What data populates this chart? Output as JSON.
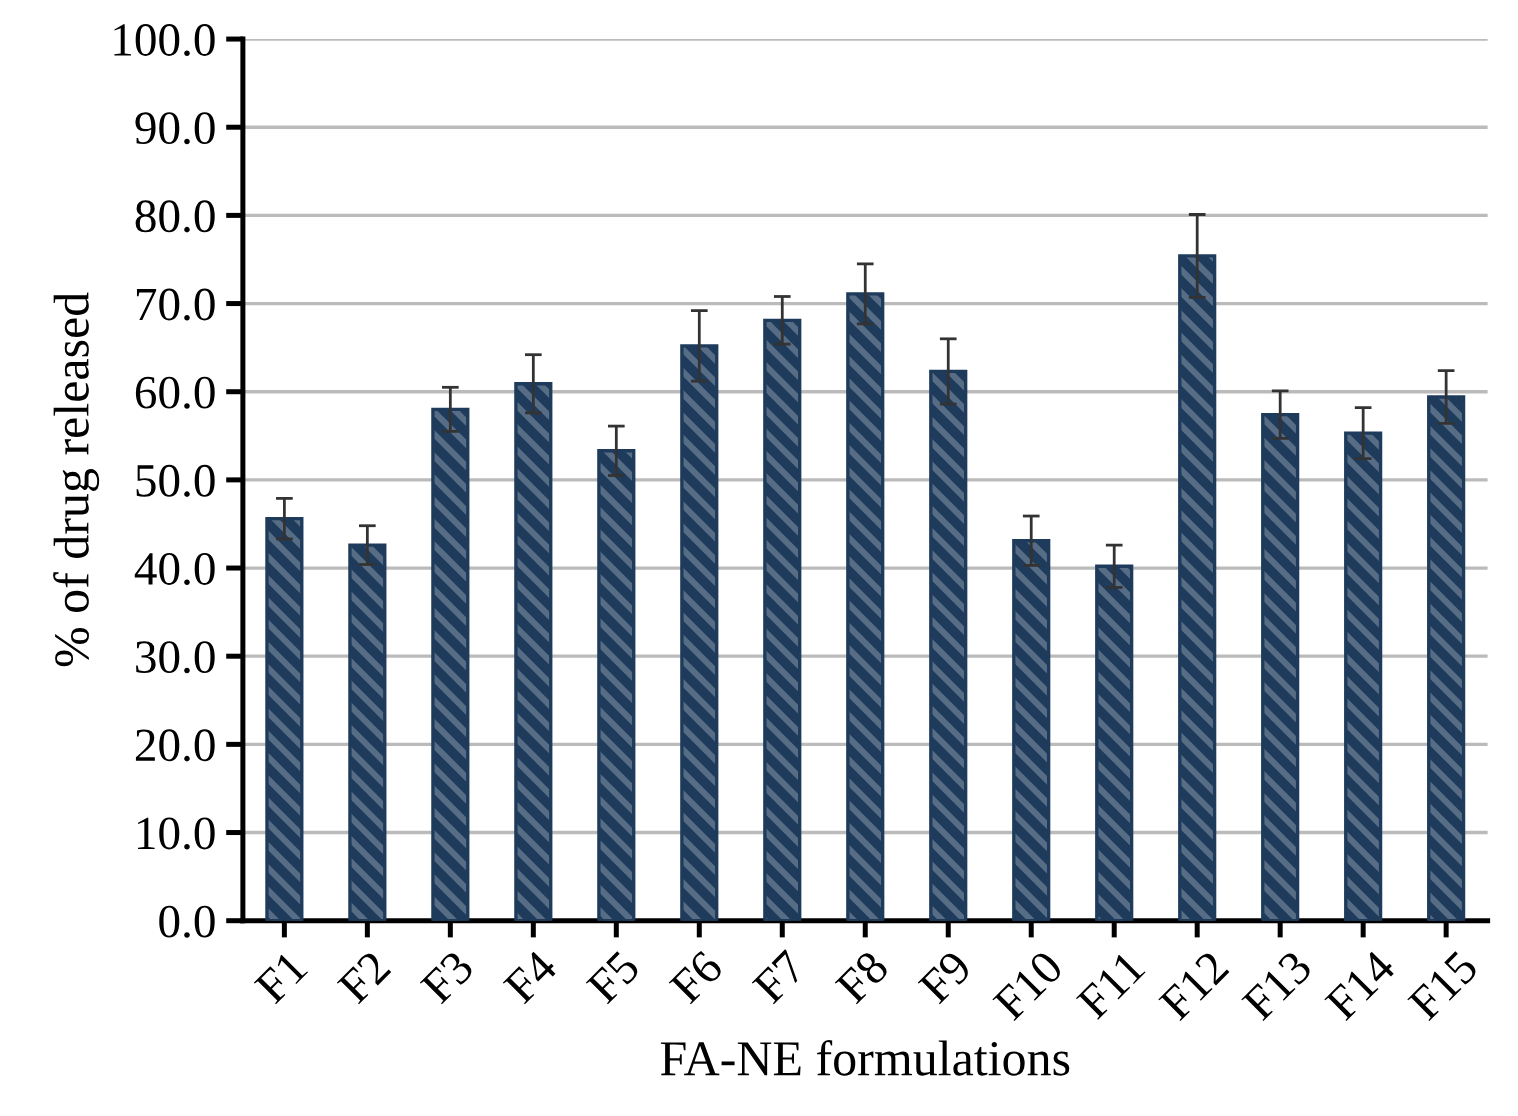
{
  "chart_data": {
    "type": "bar",
    "xlabel": "FA-NE formulations",
    "ylabel": "% of drug released",
    "categories": [
      "F1",
      "F2",
      "F3",
      "F4",
      "F5",
      "F6",
      "F7",
      "F8",
      "F9",
      "F10",
      "F11",
      "F12",
      "F13",
      "F14",
      "F15"
    ],
    "values": [
      45.6,
      42.6,
      58.0,
      60.9,
      53.3,
      65.2,
      68.1,
      71.1,
      62.3,
      43.1,
      40.2,
      75.4,
      57.4,
      55.3,
      59.4
    ],
    "errors": [
      2.3,
      2.2,
      2.5,
      3.3,
      2.8,
      4.0,
      2.7,
      3.4,
      3.7,
      2.8,
      2.4,
      4.7,
      2.7,
      2.9,
      3.0
    ],
    "color": "#1f3b5c",
    "ylim": [
      0,
      100
    ],
    "yticks": [
      {
        "value": 0,
        "label": "0.0"
      },
      {
        "value": 10,
        "label": "10.0"
      },
      {
        "value": 20,
        "label": "20.0"
      },
      {
        "value": 30,
        "label": "30.0"
      },
      {
        "value": 40,
        "label": "40.0"
      },
      {
        "value": 50,
        "label": "50.0"
      },
      {
        "value": 60,
        "label": "60.0"
      },
      {
        "value": 70,
        "label": "70.0"
      },
      {
        "value": 80,
        "label": "80.0"
      },
      {
        "value": 90,
        "label": "90.0"
      },
      {
        "value": 100,
        "label": "100.0"
      }
    ],
    "grid": "y",
    "legend": false
  }
}
